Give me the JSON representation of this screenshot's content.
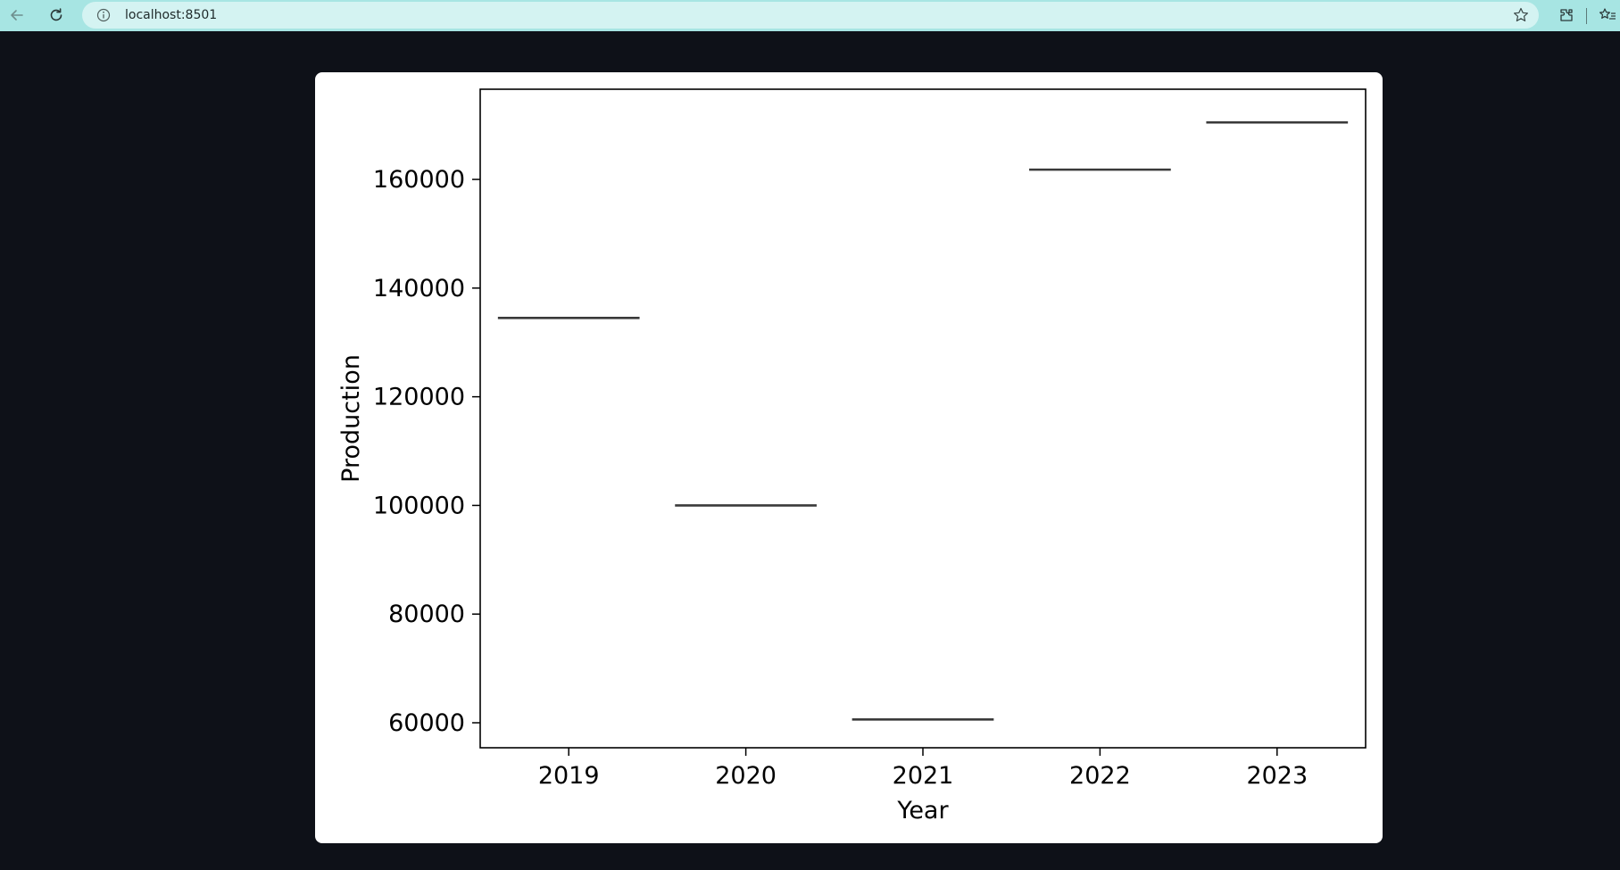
{
  "browser": {
    "url": "localhost:8501",
    "icons": {
      "back": "back-arrow-icon",
      "reload": "reload-icon",
      "info": "info-icon",
      "star": "star-icon",
      "extensions": "extensions-icon",
      "favorites": "favorites-icon"
    },
    "colors": {
      "toolbar": "#a7e5e3",
      "urlbar": "#d4f3f2",
      "page_background": "#0e1118"
    }
  },
  "chart_data": {
    "type": "box",
    "categories": [
      "2019",
      "2020",
      "2021",
      "2022",
      "2023"
    ],
    "values": [
      134500,
      100000,
      60600,
      161800,
      170500
    ],
    "xlabel": "Year",
    "ylabel": "Production",
    "ylim": [
      55400,
      176600
    ],
    "yticks": [
      60000,
      80000,
      100000,
      120000,
      140000,
      160000
    ],
    "grid": false,
    "line_color": "#3a3a3a"
  }
}
